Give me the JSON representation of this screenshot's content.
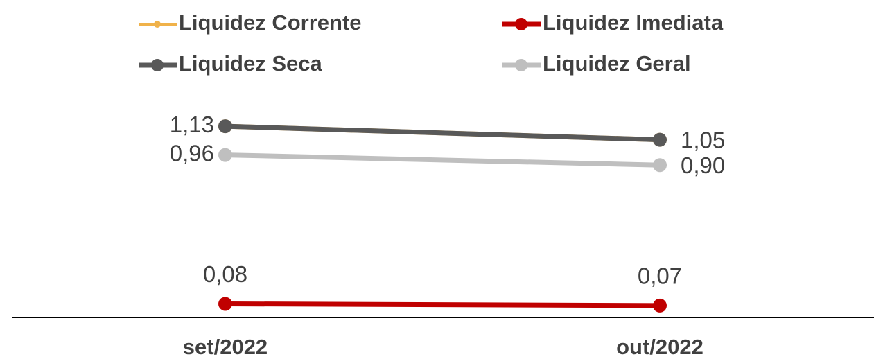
{
  "chart_data": {
    "type": "line",
    "categories": [
      "set/2022",
      "out/2022"
    ],
    "series": [
      {
        "name": "Liquidez Corrente",
        "color": "#f0b24a",
        "values": [
          1.13,
          1.05
        ]
      },
      {
        "name": "Liquidez Imediata",
        "color": "#c00000",
        "values": [
          0.08,
          0.07
        ],
        "value_labels": [
          "0,08",
          "0,07"
        ]
      },
      {
        "name": "Liquidez Seca",
        "color": "#595959",
        "values": [
          1.13,
          1.05
        ],
        "value_labels": [
          "1,13",
          "1,05"
        ]
      },
      {
        "name": "Liquidez Geral",
        "color": "#bfbfbf",
        "values": [
          0.96,
          0.9
        ],
        "value_labels": [
          "0,96",
          "0,90"
        ]
      }
    ],
    "ylim": [
      0,
      1.2
    ]
  }
}
